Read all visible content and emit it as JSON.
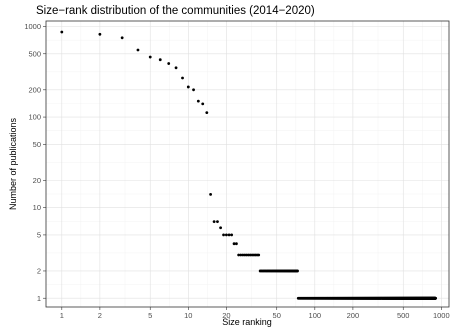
{
  "chart_data": {
    "type": "scatter",
    "title": "Size−rank distribution of the communities (2014−2020)",
    "xlabel": "Size ranking",
    "ylabel": "Number of publications",
    "x_scale": "log",
    "y_scale": "log",
    "xlim": [
      0.75,
      1150
    ],
    "ylim": [
      0.8,
      1150
    ],
    "grid": true,
    "legend": "none",
    "x_ticks": [
      1,
      2,
      5,
      10,
      20,
      50,
      100,
      200,
      500,
      1000
    ],
    "x_tick_labels": [
      "1",
      "2",
      "5",
      "10",
      "20",
      "50",
      "100",
      "200",
      "500",
      "1000"
    ],
    "y_ticks": [
      1,
      2,
      5,
      10,
      20,
      50,
      100,
      200,
      500,
      1000
    ],
    "y_tick_labels": [
      "1",
      "2",
      "5",
      "10",
      "20",
      "50",
      "100",
      "200",
      "500",
      "1000"
    ],
    "point_color": "#000000",
    "points": [
      [
        1,
        870
      ],
      [
        2,
        820
      ],
      [
        3,
        750
      ],
      [
        4,
        550
      ],
      [
        5,
        460
      ],
      [
        6,
        430
      ],
      [
        7,
        390
      ],
      [
        8,
        350
      ],
      [
        9,
        270
      ],
      [
        10,
        215
      ],
      [
        11,
        200
      ],
      [
        12,
        150
      ],
      [
        13,
        140
      ],
      [
        14,
        112
      ],
      [
        15,
        14
      ],
      [
        16,
        7
      ],
      [
        17,
        7
      ],
      [
        18,
        6
      ],
      [
        19,
        5
      ],
      [
        20,
        5
      ],
      [
        21,
        5
      ],
      [
        22,
        5
      ],
      [
        23,
        4
      ],
      [
        24,
        4
      ]
    ],
    "runs": [
      {
        "y": 3,
        "x_from": 25,
        "x_to": 36
      },
      {
        "y": 2,
        "x_from": 37,
        "x_to": 73
      },
      {
        "y": 1,
        "x_from": 74,
        "x_to": 900
      }
    ]
  }
}
